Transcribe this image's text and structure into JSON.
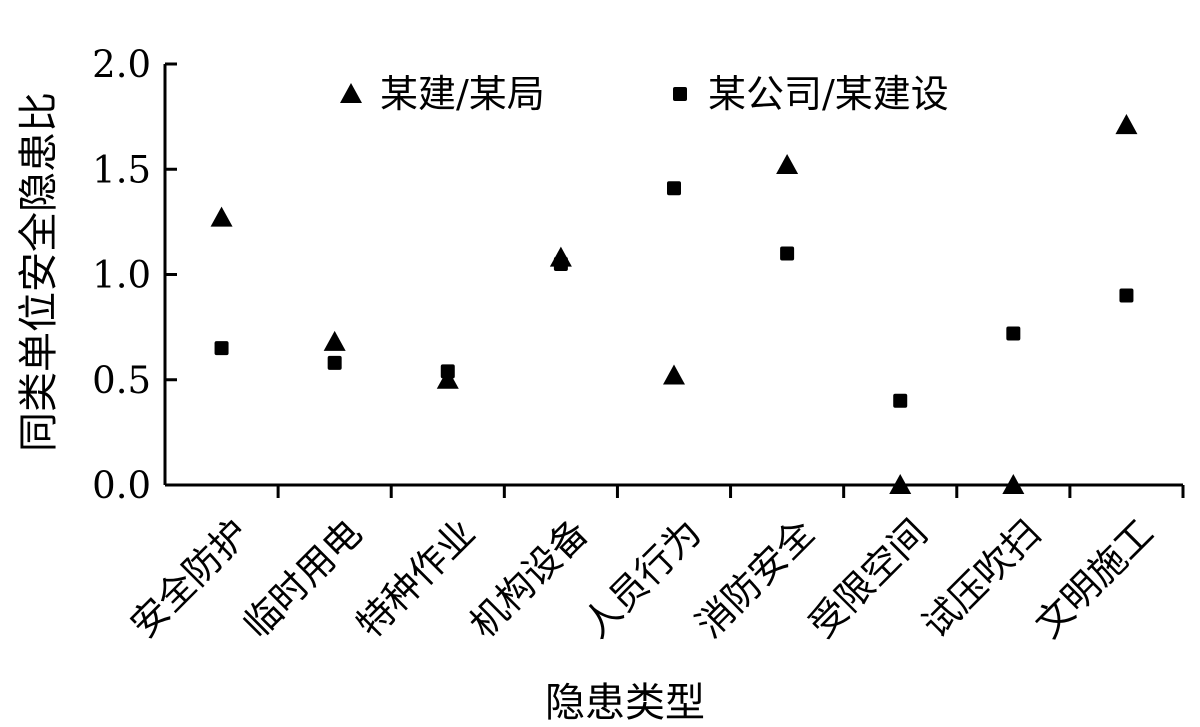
{
  "chart_data": {
    "type": "scatter",
    "title": "",
    "xlabel": "隐患类型",
    "ylabel": "同类单位安全隐患比",
    "categories": [
      "安全防护",
      "临时用电",
      "特种作业",
      "机构设备",
      "人员行为",
      "消防安全",
      "受限空间",
      "试压吹扫",
      "文明施工"
    ],
    "ylim": [
      0.0,
      2.0
    ],
    "yticks": [
      "0.0",
      "0.5",
      "1.0",
      "1.5",
      "2.0"
    ],
    "grid": false,
    "legend_position": "top",
    "series": [
      {
        "name": "某建/某局",
        "marker": "triangle",
        "color": "#000000",
        "values": [
          1.27,
          0.68,
          0.5,
          1.08,
          0.52,
          1.52,
          0.0,
          0.0,
          1.71
        ]
      },
      {
        "name": "某公司/某建设",
        "marker": "square",
        "color": "#000000",
        "values": [
          0.65,
          0.58,
          0.54,
          1.05,
          1.41,
          1.1,
          0.4,
          0.72,
          0.9
        ]
      }
    ]
  }
}
